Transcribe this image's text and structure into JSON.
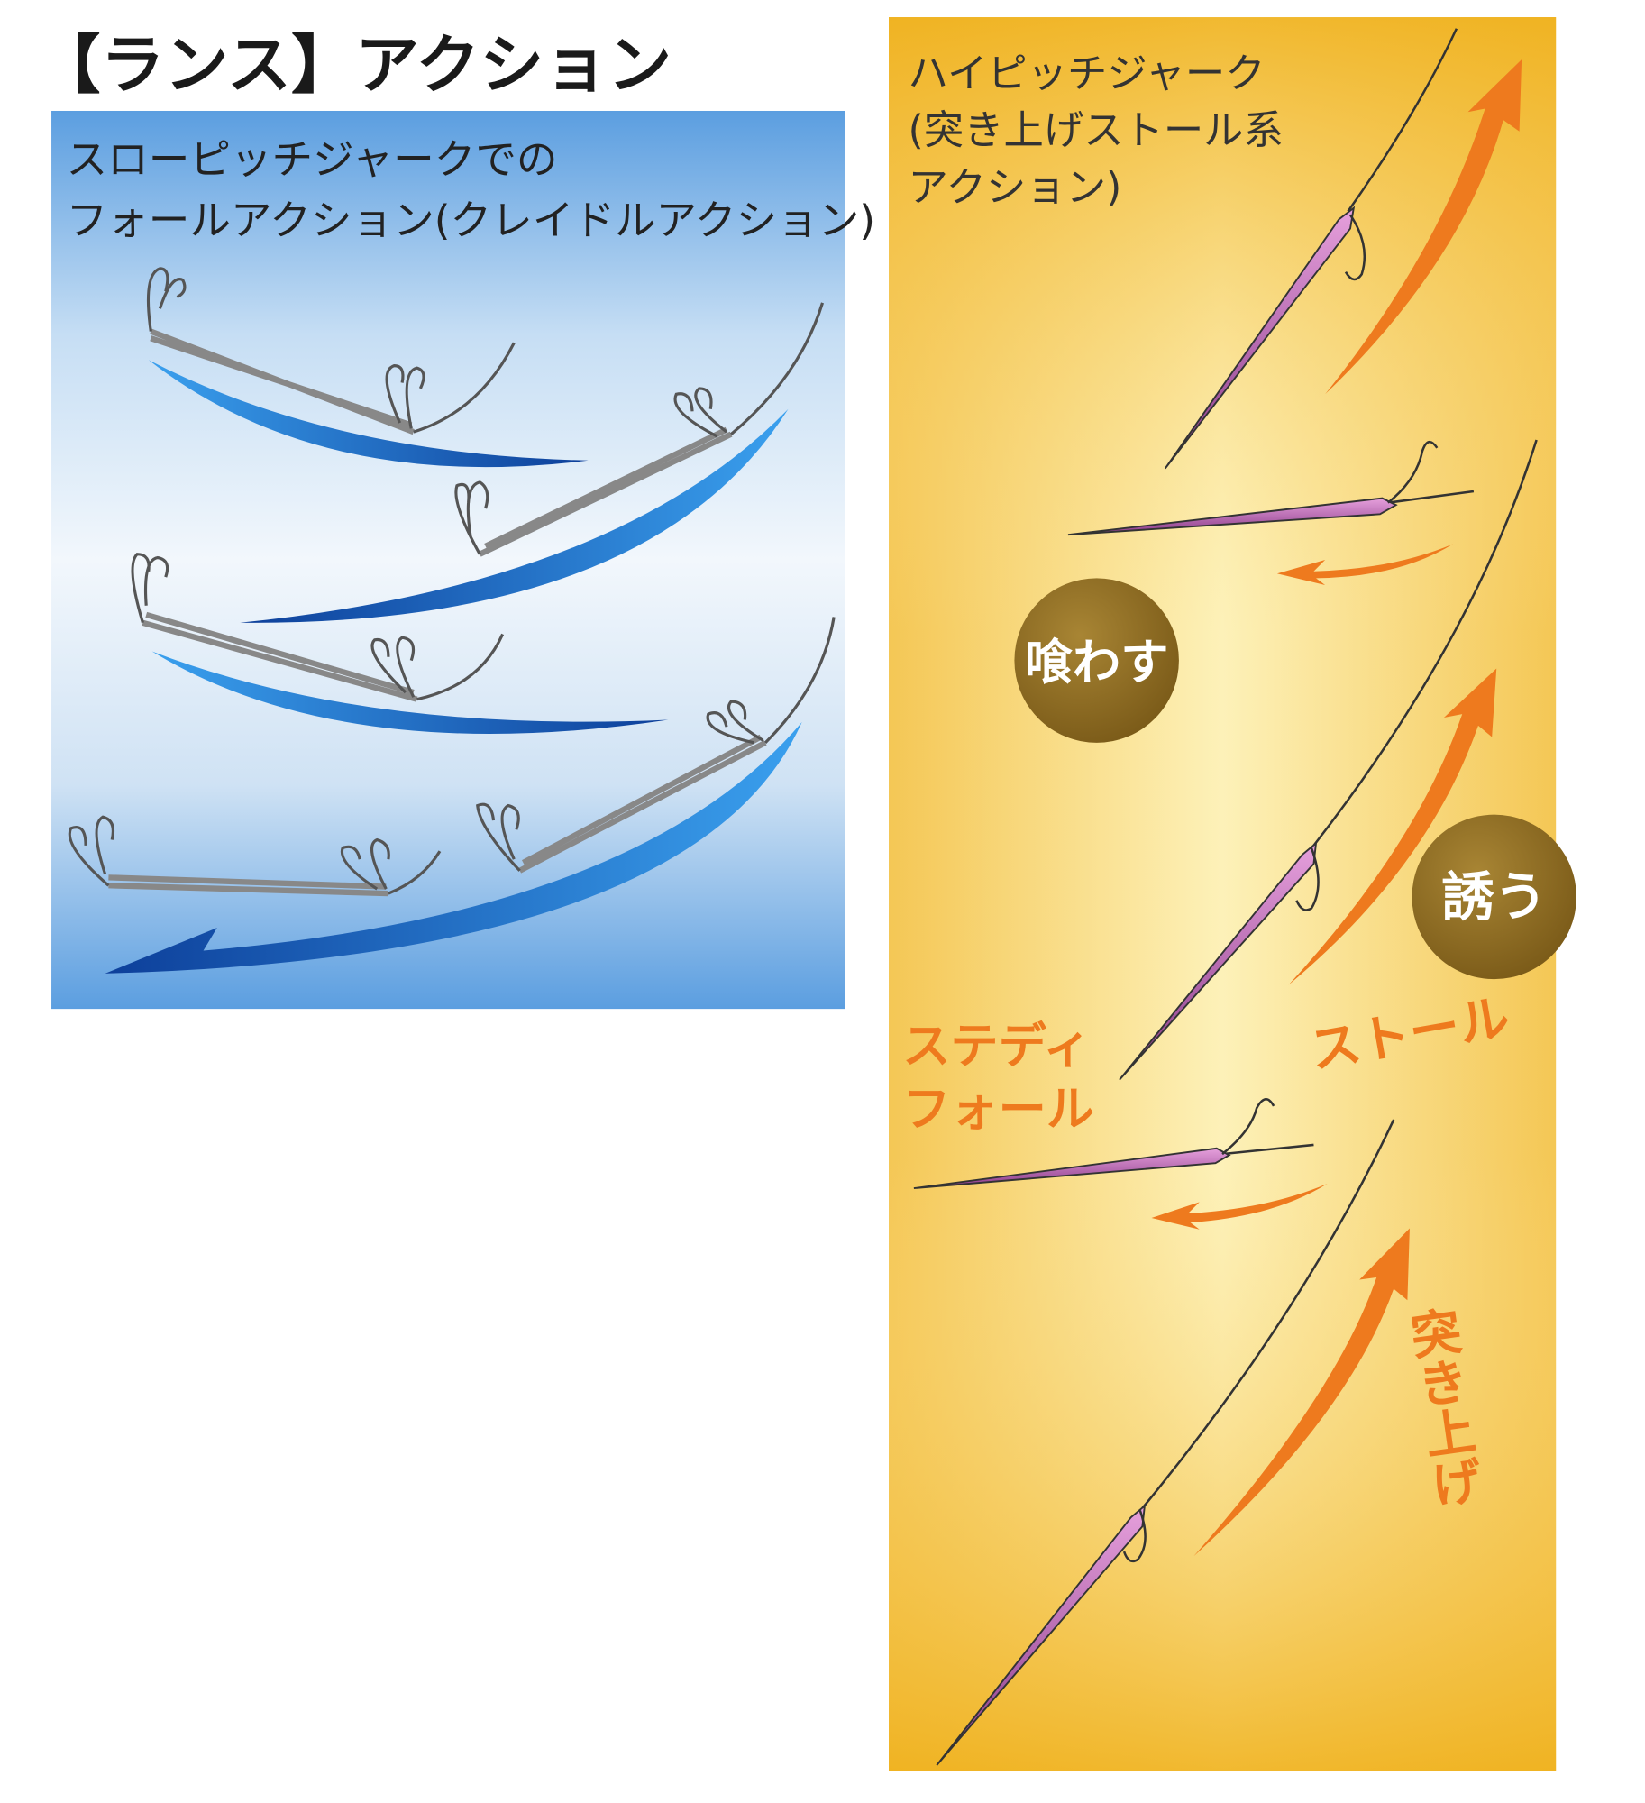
{
  "title": "【ランス】アクション",
  "slow_pitch_panel": {
    "heading_line1": "スローピッチジャークでの",
    "heading_line2": "フォールアクション(クレイドルアクション)"
  },
  "high_pitch_panel": {
    "heading_line1": "ハイピッチジャーク",
    "heading_line2": "(突き上げストール系",
    "heading_line3": "アクション)",
    "badge_eat": "喰わす",
    "badge_lure": "誘う",
    "label_steady_line1": "ステディ",
    "label_steady_line2": "フォール",
    "label_stall": "ストール",
    "label_thrust": "突き上げ"
  },
  "colors": {
    "blue_swoosh": "#1e73c8",
    "orange_arrow": "#ee7a1e",
    "badge": "#8a6a22",
    "lure_pink": "#c060b0"
  }
}
